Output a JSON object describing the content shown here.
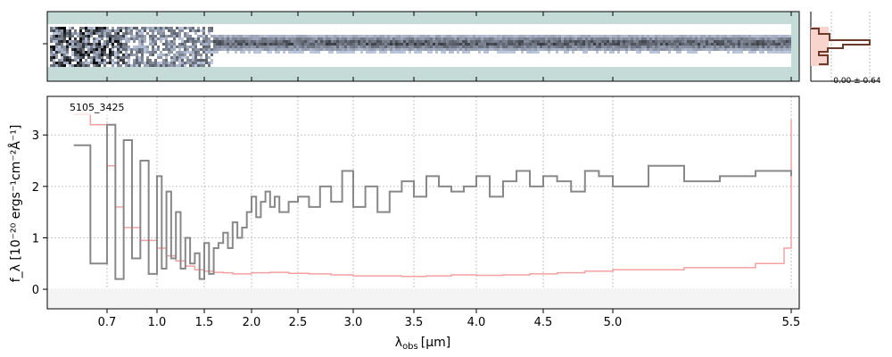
{
  "chart_data": {
    "type": "line",
    "object_id": "5105_3425",
    "xlabel_main": "λ",
    "xlabel_sub": "obs",
    "xlabel_unit": "[μm]",
    "ylabel": "f_λ [10⁻²⁰ ergs⁻¹cm⁻²Å⁻¹]",
    "xlim": [
      0.55,
      5.52
    ],
    "ylim": [
      -0.38,
      3.75
    ],
    "x_scale": "nonlinear (spectral resolution)",
    "x_ticks": [
      0.7,
      1.0,
      1.5,
      2.0,
      2.5,
      3.0,
      3.5,
      4.0,
      4.5,
      5.0,
      5.5
    ],
    "x_tick_labels": [
      "0.7",
      "1.0",
      "1.5",
      "2.0",
      "2.5",
      "3.0",
      "3.5",
      "4.0",
      "4.5",
      "5.0",
      "5.5"
    ],
    "y_ticks": [
      0,
      1,
      2,
      3
    ],
    "y_tick_labels": [
      "0",
      "1",
      "2",
      "3"
    ],
    "grid": true,
    "series": [
      {
        "color": "#888888",
        "x": [
          0.6,
          0.65,
          0.7,
          0.75,
          0.8,
          0.85,
          0.9,
          0.95,
          1.0,
          1.05,
          1.1,
          1.15,
          1.2,
          1.25,
          1.3,
          1.35,
          1.4,
          1.45,
          1.5,
          1.55,
          1.6,
          1.65,
          1.7,
          1.75,
          1.8,
          1.85,
          1.9,
          1.95,
          2.0,
          2.05,
          2.1,
          2.15,
          2.2,
          2.25,
          2.3,
          2.4,
          2.5,
          2.6,
          2.7,
          2.8,
          2.9,
          3.0,
          3.1,
          3.2,
          3.3,
          3.4,
          3.5,
          3.6,
          3.7,
          3.8,
          3.9,
          4.0,
          4.1,
          4.2,
          4.3,
          4.4,
          4.5,
          4.6,
          4.7,
          4.8,
          4.9,
          5.0,
          5.1,
          5.2,
          5.3,
          5.4,
          5.5
        ],
        "y": [
          2.8,
          0.5,
          3.2,
          0.2,
          2.9,
          0.6,
          2.5,
          0.3,
          2.2,
          0.4,
          1.9,
          0.6,
          1.5,
          0.4,
          1.0,
          0.5,
          0.7,
          0.2,
          0.9,
          0.3,
          0.8,
          0.9,
          1.1,
          0.8,
          1.3,
          1.0,
          1.2,
          1.5,
          1.8,
          1.4,
          1.7,
          1.9,
          1.6,
          1.8,
          1.5,
          1.7,
          1.8,
          1.6,
          2.0,
          1.7,
          2.3,
          1.6,
          2.0,
          1.5,
          1.9,
          2.1,
          1.8,
          2.2,
          2.0,
          1.9,
          2.0,
          2.2,
          1.8,
          2.1,
          2.3,
          2.0,
          2.2,
          2.1,
          1.9,
          2.3,
          2.2,
          2.0,
          2.4,
          2.1,
          2.2,
          2.3,
          2.2
        ]
      },
      {
        "color": "#f4a0a0",
        "x": [
          0.6,
          0.65,
          0.7,
          0.75,
          0.8,
          0.9,
          1.0,
          1.1,
          1.2,
          1.3,
          1.4,
          1.5,
          1.6,
          1.7,
          1.8,
          1.9,
          2.0,
          2.2,
          2.4,
          2.6,
          2.8,
          3.0,
          3.2,
          3.4,
          3.6,
          3.8,
          4.0,
          4.2,
          4.4,
          4.6,
          4.8,
          5.0,
          5.2,
          5.4,
          5.48,
          5.5
        ],
        "y": [
          3.4,
          3.2,
          2.4,
          1.6,
          1.2,
          0.95,
          0.8,
          0.65,
          0.55,
          0.45,
          0.38,
          0.35,
          0.33,
          0.32,
          0.3,
          0.3,
          0.32,
          0.33,
          0.31,
          0.3,
          0.28,
          0.26,
          0.26,
          0.25,
          0.26,
          0.28,
          0.27,
          0.28,
          0.3,
          0.32,
          0.35,
          0.38,
          0.42,
          0.5,
          0.8,
          3.3
        ]
      }
    ],
    "profile_panel": {
      "label": "-0.00 ± 0.64"
    }
  }
}
